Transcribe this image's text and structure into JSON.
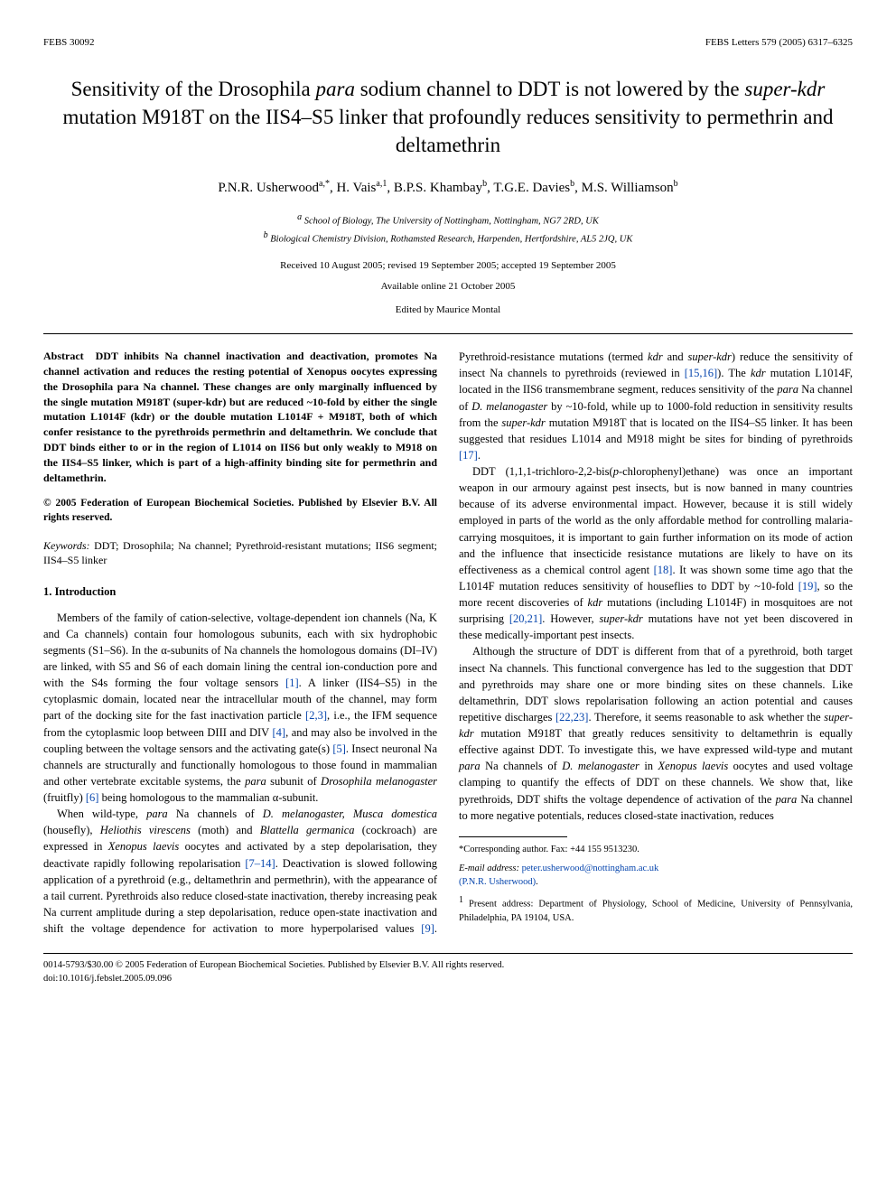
{
  "header": {
    "left": "FEBS 30092",
    "right": "FEBS Letters 579 (2005) 6317–6325"
  },
  "title_parts": {
    "p1": "Sensitivity of the Drosophila ",
    "i1": "para",
    "p2": " sodium channel to DDT is not lowered by the ",
    "i2": "super-kdr",
    "p3": " mutation M918T on the IIS4–S5 linker that profoundly reduces sensitivity to permethrin and deltamethrin"
  },
  "authors": {
    "a1": "P.N.R. Usherwood",
    "a1sup": "a,*",
    "a2": "H. Vais",
    "a2sup": "a,1",
    "a3": "B.P.S. Khambay",
    "a3sup": "b",
    "a4": "T.G.E. Davies",
    "a4sup": "b",
    "a5": "M.S. Williamson",
    "a5sup": "b"
  },
  "affiliations": {
    "a": "School of Biology, The University of Nottingham, Nottingham, NG7 2RD, UK",
    "b": "Biological Chemistry Division, Rothamsted Research, Harpenden, Hertfordshire, AL5 2JQ, UK",
    "asup": "a",
    "bsup": "b"
  },
  "dates": "Received 10 August 2005; revised 19 September 2005; accepted 19 September 2005",
  "available": "Available online 21 October 2005",
  "edited": "Edited by Maurice Montal",
  "abstract": {
    "lead": "Abstract",
    "body": "DDT inhibits Na channel inactivation and deactivation, promotes Na channel activation and reduces the resting potential of Xenopus oocytes expressing the Drosophila para Na channel. These changes are only marginally influenced by the single mutation M918T (super-kdr) but are reduced ~10-fold by either the single mutation L1014F (kdr) or the double mutation L1014F + M918T, both of which confer resistance to the pyrethroids permethrin and deltamethrin. We conclude that DDT binds either to or in the region of L1014 on IIS6 but only weakly to M918 on the IIS4–S5 linker, which is part of a high-affinity binding site for permethrin and deltamethrin."
  },
  "copyright_abs": "© 2005 Federation of European Biochemical Societies. Published by Elsevier B.V. All rights reserved.",
  "keywords": {
    "lead": "Keywords:",
    "body": "DDT; Drosophila; Na channel; Pyrethroid-resistant mutations; IIS6 segment; IIS4–S5 linker"
  },
  "section1_head": "1. Introduction",
  "intro": {
    "p1a": "Members of the family of cation-selective, voltage-dependent ion channels (Na, K and Ca channels) contain four homologous subunits, each with six hydrophobic segments (S1–S6). In the α-subunits of Na channels the homologous domains (DI–IV) are linked, with S5 and S6 of each domain lining the central ion-conduction pore and with the S4s forming the four voltage sensors ",
    "r1": "[1]",
    "p1b": ". A linker (IIS4–S5) in the cytoplasmic domain, located near the intracellular mouth of the channel, may form part of the docking site for the fast inactivation particle ",
    "r2": "[2,3]",
    "p1c": ", i.e., the IFM sequence from the cytoplasmic loop between DIII and DIV ",
    "r3": "[4]",
    "p1d": ", and may also be involved in the coupling between the voltage sensors and the activating gate(s) ",
    "r4": "[5]",
    "p1e": ". Insect neuronal Na channels are structurally and functionally homologous to those found in mammalian and other vertebrate excitable systems, the ",
    "i1": "para",
    "p1f": " subunit of ",
    "i2": "Drosophila melanogaster",
    "p1g": " (fruitfly) ",
    "r5": "[6]",
    "p1h": " being homologous to the mammalian α-subunit.",
    "p2a": "When wild-type, ",
    "i3": "para",
    "p2b": " Na channels of ",
    "i4": "D. melanogaster, Musca domestica",
    "p2c": " (housefly), ",
    "i5": "Heliothis virescens",
    "p2d": " (moth) and ",
    "i6": "Blattella germanica",
    "p2e": " (cockroach) are expressed in ",
    "i7": "Xenopus laevis",
    "p3a": "oocytes and activated by a step depolarisation, they deactivate rapidly following repolarisation ",
    "r6": "[7–14]",
    "p3b": ". Deactivation is slowed following application of a pyrethroid (e.g., deltamethrin and permethrin), with the appearance of a tail current. Pyrethroids also reduce closed-state inactivation, thereby increasing peak Na current amplitude during a step depolarisation, reduce open-state inactivation and shift the voltage dependence for activation to more hyperpolarised values ",
    "r7": "[9]",
    "p3c": ". Pyrethroid-resistance mutations (termed ",
    "i8": "kdr",
    "p3d": " and ",
    "i9": "super-kdr",
    "p3e": ") reduce the sensitivity of insect Na channels to pyrethroids (reviewed in ",
    "r8": "[15,16]",
    "p3f": "). The ",
    "i10": "kdr",
    "p3g": " mutation L1014F, located in the IIS6 transmembrane segment, reduces sensitivity of the ",
    "i11": "para",
    "p3h": " Na channel of ",
    "i12": "D. melanogaster",
    "p3i": " by ~10-fold, while up to 1000-fold reduction in sensitivity results from the ",
    "i13": "super-kdr",
    "p3j": " mutation M918T that is located on the IIS4–S5 linker. It has been suggested that residues L1014 and M918 might be sites for binding of pyrethroids ",
    "r9": "[17]",
    "p3k": ".",
    "p4a": "DDT (1,1,1-trichloro-2,2-bis(",
    "i14": "p",
    "p4b": "-chlorophenyl)ethane) was once an important weapon in our armoury against pest insects, but is now banned in many countries because of its adverse environmental impact. However, because it is still widely employed in parts of the world as the only affordable method for controlling malaria-carrying mosquitoes, it is important to gain further information on its mode of action and the influence that insecticide resistance mutations are likely to have on its effectiveness as a chemical control agent ",
    "r10": "[18]",
    "p4c": ". It was shown some time ago that the L1014F mutation reduces sensitivity of houseflies to DDT by ~10-fold ",
    "r11": "[19]",
    "p4d": ", so the more recent discoveries of ",
    "i15": "kdr",
    "p4e": " mutations (including L1014F) in mosquitoes are not surprising ",
    "r12": "[20,21]",
    "p4f": ". However, ",
    "i16": "super-kdr",
    "p4g": " mutations have not yet been discovered in these medically-important pest insects.",
    "p5a": "Although the structure of DDT is different from that of a pyrethroid, both target insect Na channels. This functional convergence has led to the suggestion that DDT and pyrethroids may share one or more binding sites on these channels. Like deltamethrin, DDT slows repolarisation following an action potential and causes repetitive discharges ",
    "r13": "[22,23]",
    "p5b": ". Therefore, it seems reasonable to ask whether the ",
    "i17": "super-kdr",
    "p5c": " mutation M918T that greatly reduces sensitivity to deltamethrin is equally effective against DDT. To investigate this, we have expressed wild-type and mutant ",
    "i18": "para",
    "p5d": " Na channels of ",
    "i19": "D. melanogaster",
    "p5e": " in ",
    "i20": "Xenopus laevis",
    "p5f": " oocytes and used voltage clamping to quantify the effects of DDT on these channels. We show that, like pyrethroids, DDT shifts the voltage dependence of activation of the ",
    "i21": "para",
    "p5g": " Na channel to more negative potentials, reduces closed-state inactivation, reduces"
  },
  "footnotes": {
    "corr_label": "*Corresponding author. Fax: +44 155 9513230.",
    "email_label": "E-mail address:",
    "email": "peter.usherwood@nottingham.ac.uk",
    "email_name": "(P.N.R. Usherwood)",
    "present_sup": "1",
    "present": "Present address: Department of Physiology, School of Medicine, University of Pennsylvania, Philadelphia, PA 19104, USA."
  },
  "footer": {
    "line1": "0014-5793/$30.00 © 2005 Federation of European Biochemical Societies. Published by Elsevier B.V. All rights reserved.",
    "line2": "doi:10.1016/j.febslet.2005.09.096"
  },
  "colors": {
    "text": "#000000",
    "link": "#0645ad",
    "bg": "#ffffff"
  }
}
